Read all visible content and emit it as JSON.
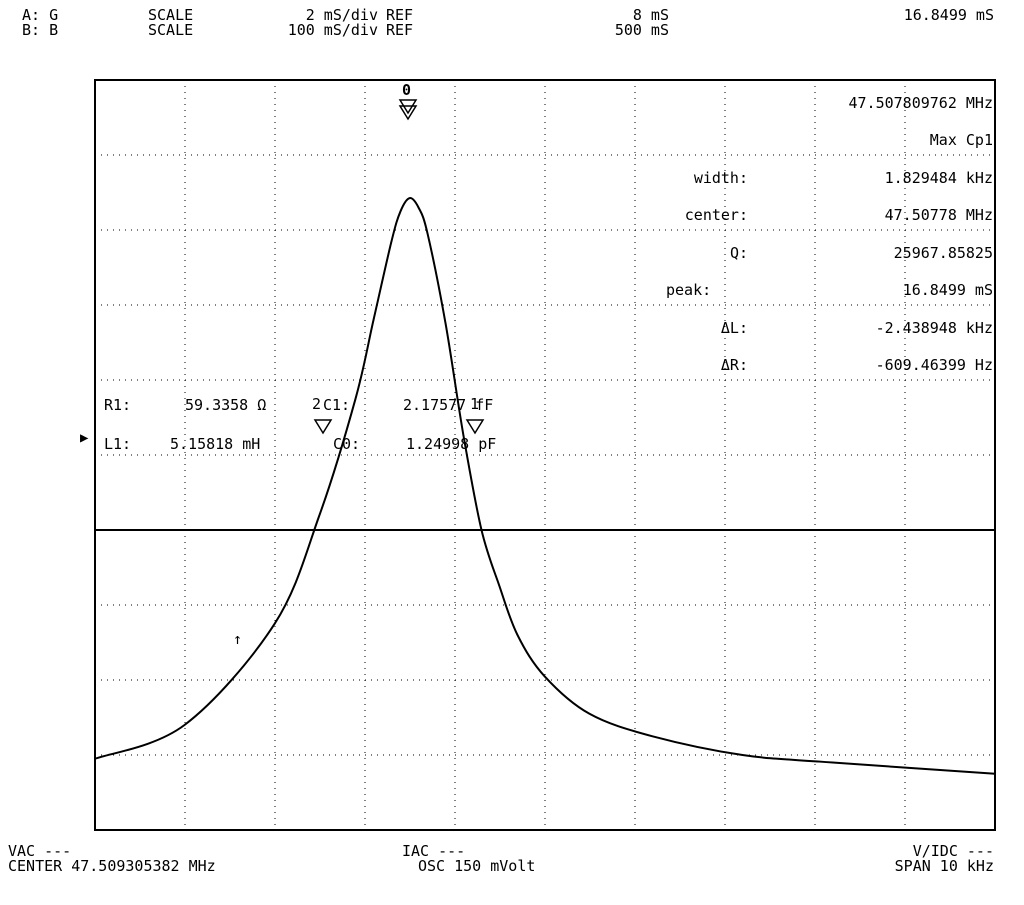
{
  "header": {
    "row_a": {
      "channel": "A: G",
      "scale_label": "SCALE",
      "scale_value": "2 mS/div",
      "ref_label": "REF",
      "ref_value": "8 mS"
    },
    "row_b": {
      "channel": "B: B",
      "scale_label": "SCALE",
      "scale_value": "100 mS/div",
      "ref_label": "REF",
      "ref_value": "500 mS"
    },
    "marker_readout": "16.8499 mS"
  },
  "measurements": {
    "frequency": "47.507809762 MHz",
    "mode": "Max Cp1",
    "width_label": "width:",
    "width_value": "1.829484 kHz",
    "center_label": "center:",
    "center_value": "47.50778 MHz",
    "q_label": "Q:",
    "q_value": "25967.85825",
    "peak_label": "peak:",
    "peak_value": "16.8499 mS",
    "dl_label": "ΔL:",
    "dl_value": "-2.438948 kHz",
    "dr_label": "ΔR:",
    "dr_value": "-609.46399 Hz"
  },
  "equivalent_circuit": {
    "r1_label": "R1:",
    "r1_value": "59.3358 Ω",
    "c1_label": "C1:",
    "c1_value": "2.17577 fF",
    "l1_label": "L1:",
    "l1_value": "5.15818 mH",
    "c0_label": "C0:",
    "c0_value": "1.24998 pF"
  },
  "markers": {
    "peak": "0",
    "left": "1",
    "right": "2",
    "cursor": "↑",
    "ref_arrow": "▶"
  },
  "footer": {
    "vac": "VAC ---",
    "center": "CENTER 47.509305382 MHz",
    "iac": "IAC ---",
    "osc": "OSC 150 mVolt",
    "vidc": "V/IDC ---",
    "span": "SPAN 10 kHz"
  },
  "chart_data": {
    "type": "line",
    "xlabel": "",
    "ylabel": "",
    "xlim": [
      47.504305,
      47.514305
    ],
    "ylim": [
      0,
      20
    ],
    "grid": true,
    "grid_divisions": {
      "x": 10,
      "y": 10
    },
    "ref_level": 8,
    "series": [
      {
        "x": [
          47.504305,
          47.5053,
          47.5063,
          47.5068,
          47.5072,
          47.5074,
          47.5076,
          47.5077,
          47.5078,
          47.5079,
          47.508,
          47.5082,
          47.5084,
          47.5086,
          47.5088,
          47.509,
          47.5093,
          47.5098,
          47.5105,
          47.5115,
          47.5125,
          47.514305
        ],
        "y": [
          1.9,
          2.8,
          5.5,
          8.4,
          11.5,
          13.6,
          15.7,
          16.5,
          16.85,
          16.6,
          15.9,
          13.5,
          10.5,
          8.0,
          6.5,
          5.2,
          4.1,
          3.1,
          2.5,
          2.0,
          1.8,
          1.5
        ]
      }
    ]
  }
}
